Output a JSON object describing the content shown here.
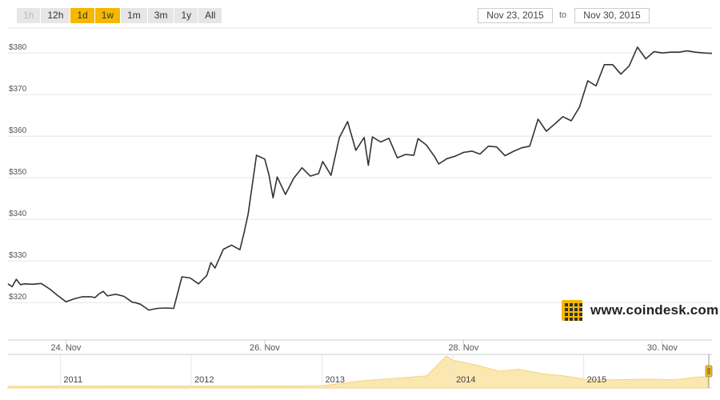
{
  "range_selector": {
    "buttons": [
      {
        "label": "1h",
        "state": "disabled"
      },
      {
        "label": "12h",
        "state": "normal"
      },
      {
        "label": "1d",
        "state": "active"
      },
      {
        "label": "1w",
        "state": "active"
      },
      {
        "label": "1m",
        "state": "normal"
      },
      {
        "label": "3m",
        "state": "normal"
      },
      {
        "label": "1y",
        "state": "normal"
      },
      {
        "label": "All",
        "state": "normal"
      }
    ]
  },
  "date_range": {
    "from": "Nov 23, 2015",
    "to_label": "to",
    "to": "Nov 30, 2015"
  },
  "watermark": {
    "text": "www.coindesk.com"
  },
  "colors": {
    "line": "#333333",
    "accent": "#f5b800",
    "grid": "#e6e6e6",
    "navigator": "#fbe7b0"
  },
  "chart_data": {
    "type": "line",
    "title": "",
    "xlabel": "",
    "ylabel": "",
    "ylim": [
      311,
      386
    ],
    "yticks": [
      320,
      330,
      340,
      350,
      360,
      370,
      380
    ],
    "ytick_labels": [
      "$320",
      "$330",
      "$340",
      "$350",
      "$360",
      "$370",
      "$380"
    ],
    "xlim": [
      "2015-11-23T10:00",
      "2015-11-30T12:00"
    ],
    "xticks": [
      "2015-11-24T00:00",
      "2015-11-26T00:00",
      "2015-11-28T00:00",
      "2015-11-30T00:00"
    ],
    "xtick_labels": [
      "24. Nov",
      "26. Nov",
      "28. Nov",
      "30. Nov"
    ],
    "grid": true,
    "series": [
      {
        "x": [
          "2015-11-23T10:00",
          "2015-11-23T11:00",
          "2015-11-23T12:00",
          "2015-11-23T13:00",
          "2015-11-23T14:00",
          "2015-11-23T16:00",
          "2015-11-23T18:00",
          "2015-11-23T20:00",
          "2015-11-23T22:00",
          "2015-11-24T00:00",
          "2015-11-24T02:00",
          "2015-11-24T04:00",
          "2015-11-24T06:00",
          "2015-11-24T07:00",
          "2015-11-24T08:00",
          "2015-11-24T09:00",
          "2015-11-24T10:00",
          "2015-11-24T12:00",
          "2015-11-24T14:00",
          "2015-11-24T16:00",
          "2015-11-24T17:00",
          "2015-11-24T18:00",
          "2015-11-24T20:00",
          "2015-11-24T22:00",
          "2015-11-25T00:00",
          "2015-11-25T02:00",
          "2015-11-25T04:00",
          "2015-11-25T06:00",
          "2015-11-25T08:00",
          "2015-11-25T10:00",
          "2015-11-25T11:00",
          "2015-11-25T12:00",
          "2015-11-25T14:00",
          "2015-11-25T16:00",
          "2015-11-25T18:00",
          "2015-11-25T19:00",
          "2015-11-25T20:00",
          "2015-11-25T22:00",
          "2015-11-26T00:00",
          "2015-11-26T01:00",
          "2015-11-26T02:00",
          "2015-11-26T03:00",
          "2015-11-26T05:00",
          "2015-11-26T07:00",
          "2015-11-26T09:00",
          "2015-11-26T11:00",
          "2015-11-26T13:00",
          "2015-11-26T14:00",
          "2015-11-26T16:00",
          "2015-11-26T18:00",
          "2015-11-26T20:00",
          "2015-11-26T22:00",
          "2015-11-27T00:00",
          "2015-11-27T01:00",
          "2015-11-27T02:00",
          "2015-11-27T04:00",
          "2015-11-27T06:00",
          "2015-11-27T08:00",
          "2015-11-27T10:00",
          "2015-11-27T12:00",
          "2015-11-27T13:00",
          "2015-11-27T15:00",
          "2015-11-27T17:00",
          "2015-11-27T18:00",
          "2015-11-27T20:00",
          "2015-11-27T22:00",
          "2015-11-28T00:00",
          "2015-11-28T02:00",
          "2015-11-28T04:00",
          "2015-11-28T06:00",
          "2015-11-28T08:00",
          "2015-11-28T10:00",
          "2015-11-28T12:00",
          "2015-11-28T14:00",
          "2015-11-28T16:00",
          "2015-11-28T18:00",
          "2015-11-28T20:00",
          "2015-11-28T22:00",
          "2015-11-29T00:00",
          "2015-11-29T02:00",
          "2015-11-29T04:00",
          "2015-11-29T06:00",
          "2015-11-29T08:00",
          "2015-11-29T10:00",
          "2015-11-29T12:00",
          "2015-11-29T14:00",
          "2015-11-29T16:00",
          "2015-11-29T18:00",
          "2015-11-29T20:00",
          "2015-11-29T22:00",
          "2015-11-30T00:00",
          "2015-11-30T02:00",
          "2015-11-30T04:00",
          "2015-11-30T06:00",
          "2015-11-30T08:00",
          "2015-11-30T10:00",
          "2015-11-30T12:00"
        ],
        "y": [
          324.5,
          323.8,
          325.6,
          324.3,
          324.5,
          324.4,
          324.6,
          323.3,
          321.7,
          320.2,
          320.9,
          321.4,
          321.4,
          321.2,
          322.1,
          322.7,
          321.6,
          322.0,
          321.5,
          320.1,
          319.9,
          319.6,
          318.2,
          318.6,
          318.7,
          318.6,
          326.2,
          325.9,
          324.5,
          326.5,
          329.6,
          328.3,
          332.8,
          333.8,
          332.7,
          336.8,
          341.3,
          355.4,
          354.5,
          350.8,
          345.2,
          350.2,
          346.0,
          349.9,
          352.4,
          350.4,
          351.0,
          353.9,
          350.6,
          359.6,
          363.5,
          356.6,
          359.7,
          353.0,
          359.8,
          358.6,
          359.5,
          354.8,
          355.6,
          355.4,
          359.4,
          357.9,
          355.1,
          353.3,
          354.6,
          355.2,
          356.1,
          356.4,
          355.7,
          357.6,
          357.4,
          355.3,
          356.3,
          357.2,
          357.6,
          364.1,
          361.2,
          362.9,
          364.7,
          363.7,
          367.0,
          373.3,
          372.1,
          377.2,
          377.2,
          374.9,
          376.9,
          381.4,
          378.6,
          380.3,
          380.0,
          380.2,
          380.2,
          380.5,
          380.2,
          380.0,
          379.9
        ]
      }
    ]
  },
  "navigator": {
    "year_labels": [
      "2011",
      "2012",
      "2013",
      "2014",
      "2015"
    ],
    "years": [
      2011,
      2012,
      2013,
      2014,
      2015
    ],
    "xlim": [
      2010.6,
      2015.95
    ],
    "points": [
      [
        2010.6,
        0.3
      ],
      [
        2011.5,
        1.4
      ],
      [
        2012.0,
        0.5
      ],
      [
        2012.5,
        1.1
      ],
      [
        2013.0,
        2.4
      ],
      [
        2013.3,
        20
      ],
      [
        2013.8,
        38
      ],
      [
        2013.95,
        110
      ],
      [
        2014.0,
        95
      ],
      [
        2014.1,
        85
      ],
      [
        2014.2,
        75
      ],
      [
        2014.35,
        55
      ],
      [
        2014.5,
        62
      ],
      [
        2014.7,
        45
      ],
      [
        2014.85,
        38
      ],
      [
        2015.0,
        27
      ],
      [
        2015.2,
        24
      ],
      [
        2015.5,
        26
      ],
      [
        2015.7,
        24
      ],
      [
        2015.85,
        33
      ],
      [
        2015.95,
        36
      ]
    ]
  }
}
